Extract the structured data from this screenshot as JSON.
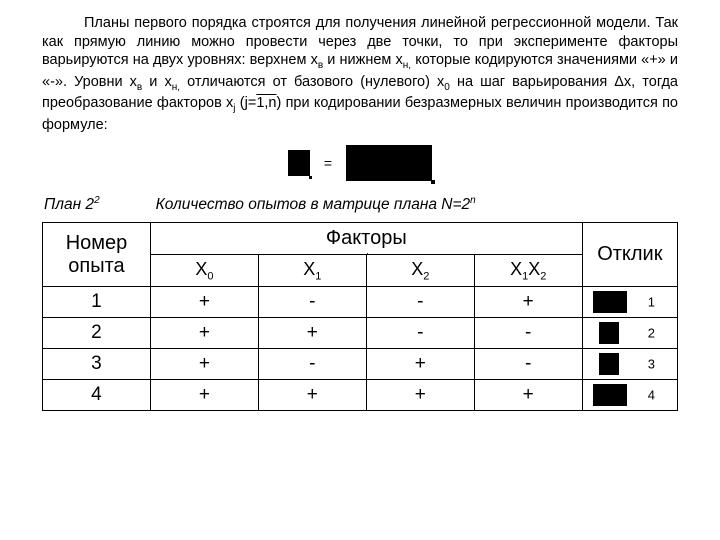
{
  "intro": {
    "text": "Планы первого порядка строятся для получения линейной регрессионной модели. Так как прямую линию можно провести через две точки, то при эксперименте факторы варьируются на двух уровнях: верхнем xв и нижнем xн, которые кодируются значениями «+» и «-». Уровни xв и xн отличаются от базового (нулевого) x0 на шаг варьирования Δx, тогда преобразование факторов xj (j=1,n) при кодировании безразмерных величин производится по формуле:"
  },
  "formula": {
    "equals": "="
  },
  "plan": {
    "label_prefix": "План 2",
    "label_sup": "2",
    "count_prefix": "Количество опытов в матрице плана N=2",
    "count_sup": "n"
  },
  "table": {
    "headers": {
      "num": "Номер опыта",
      "factors": "Факторы",
      "response": "Отклик",
      "x0": "X0",
      "x1": "X1",
      "x2": "X2",
      "x1x2": "X1X2"
    },
    "rows": [
      {
        "n": "1",
        "x0": "+",
        "x1": "-",
        "x2": "-",
        "x1x2": "+",
        "r": "1",
        "wide": true
      },
      {
        "n": "2",
        "x0": "+",
        "x1": "+",
        "x2": "-",
        "x1x2": "-",
        "r": "2",
        "wide": false
      },
      {
        "n": "3",
        "x0": "+",
        "x1": "-",
        "x2": "+",
        "x1x2": "-",
        "r": "3",
        "wide": false
      },
      {
        "n": "4",
        "x0": "+",
        "x1": "+",
        "x2": "+",
        "x1x2": "+",
        "r": "4",
        "wide": true
      }
    ]
  },
  "colors": {
    "bg": "#ffffff",
    "text": "#000000",
    "border": "#000000"
  }
}
